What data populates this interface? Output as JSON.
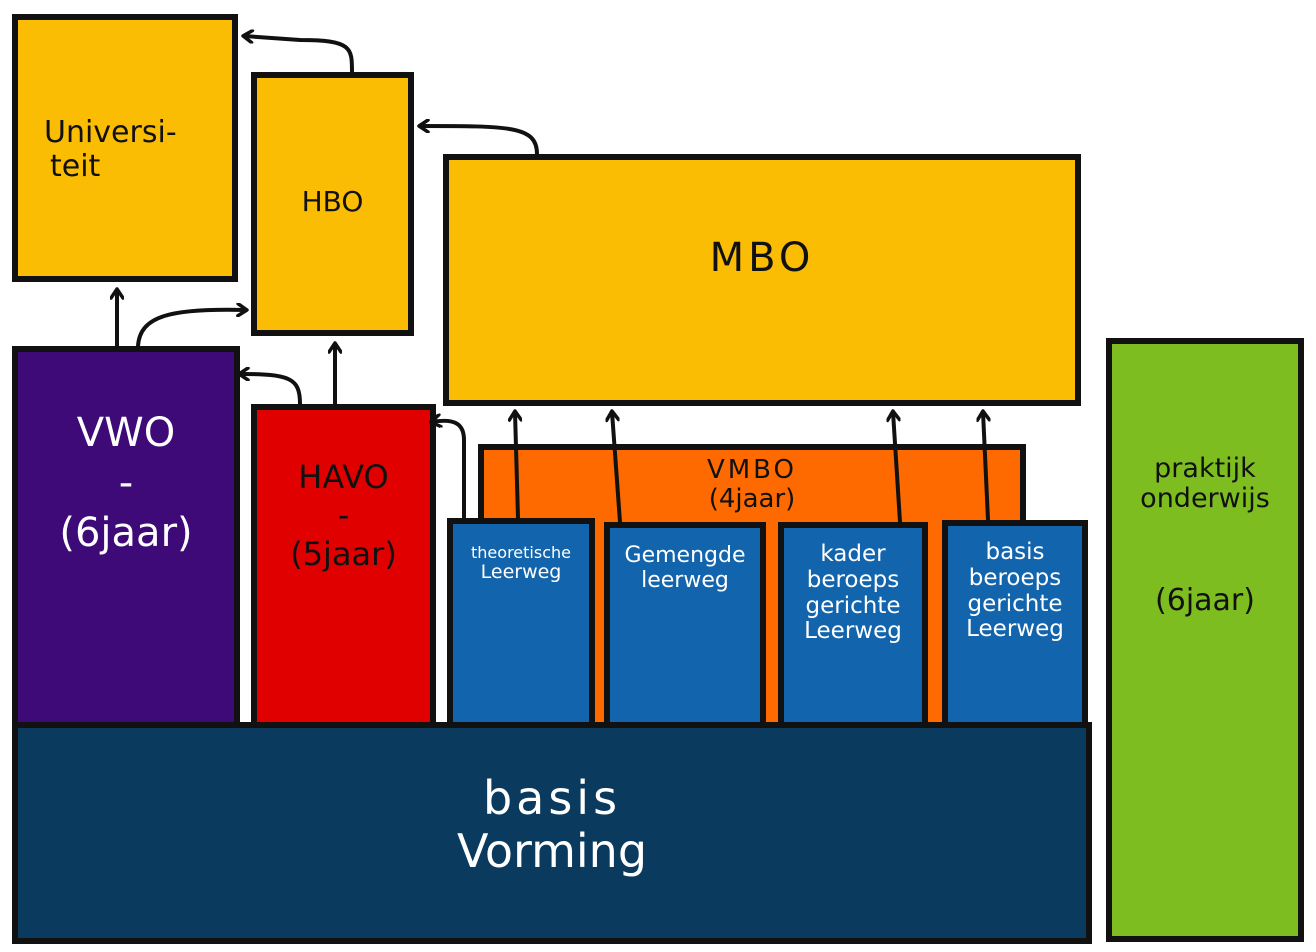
{
  "colors": {
    "yellow": "#fbbc04",
    "purple": "#3d0a78",
    "red": "#e00000",
    "orange": "#ff6a00",
    "blue": "#1265ad",
    "navy": "#0a3a5e",
    "green": "#7dbd1f",
    "outline": "#111111"
  },
  "boxes": {
    "universiteit": {
      "line1": "Universi-",
      "line2": "teit"
    },
    "hbo": {
      "label": "HBO"
    },
    "mbo": {
      "label": "MBO"
    },
    "vwo": {
      "line1": "VWO",
      "line2": "-",
      "line3": "(6jaar)"
    },
    "havo": {
      "line1": "HAVO",
      "line2": "-",
      "line3": "(5jaar)"
    },
    "vmbo": {
      "line1": "VMBO",
      "line2": "(4jaar)"
    },
    "theoretische": {
      "line1": "theoretische",
      "line2": "Leerweg"
    },
    "gemengde": {
      "line1": "Gemengde",
      "line2": "leerweg"
    },
    "kader": {
      "line1": "kader",
      "line2": "beroeps",
      "line3": "gerichte",
      "line4": "Leerweg"
    },
    "basis_beroeps": {
      "line1": "basis",
      "line2": "beroeps",
      "line3": "gerichte",
      "line4": "Leerweg"
    },
    "basisvorming": {
      "line1": "basis",
      "line2": "Vorming"
    },
    "praktijk": {
      "line1": "praktijk",
      "line2": "onderwijs",
      "line3": "(6jaar)"
    }
  }
}
